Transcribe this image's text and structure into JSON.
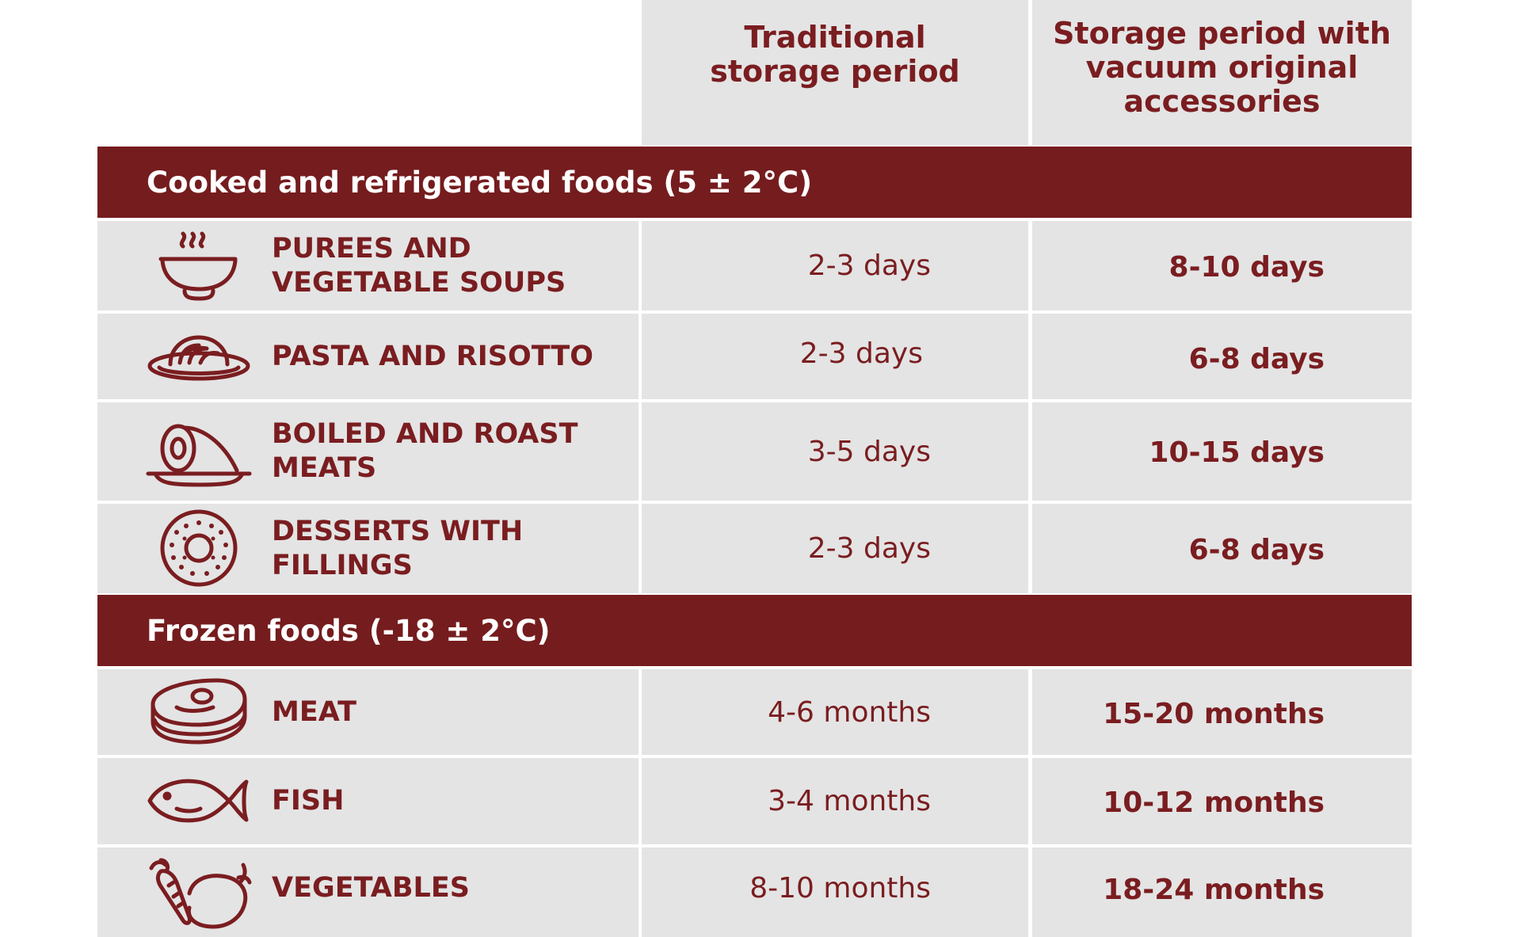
{
  "header": {
    "traditional": "Traditional\nstorage period",
    "vacuum": "Storage period with\nvacuum original\naccessories"
  },
  "sections": [
    {
      "title": "Cooked and refrigerated foods (5 ± 2°C)",
      "rows": [
        {
          "icon": "soup-bowl-icon",
          "name": "PUREES AND\nVEGETABLE SOUPS",
          "traditional": "2-3 days",
          "vacuum": "8-10 days"
        },
        {
          "icon": "pasta-plate-icon",
          "name": "PASTA AND RISOTTO",
          "traditional": "2-3 days",
          "vacuum": "6-8 days"
        },
        {
          "icon": "roast-meat-icon",
          "name": "BOILED AND ROAST\nMEATS",
          "traditional": "3-5 days",
          "vacuum": "10-15 days"
        },
        {
          "icon": "donut-icon",
          "name": "DESSERTS WITH\nFILLINGS",
          "traditional": "2-3 days",
          "vacuum": "6-8 days"
        }
      ]
    },
    {
      "title": "Frozen foods (-18 ± 2°C)",
      "rows": [
        {
          "icon": "steak-icon",
          "name": "MEAT",
          "traditional": "4-6 months",
          "vacuum": "15-20 months"
        },
        {
          "icon": "fish-icon",
          "name": "FISH",
          "traditional": "3-4 months",
          "vacuum": "10-12 months"
        },
        {
          "icon": "vegetables-icon",
          "name": "VEGETABLES",
          "traditional": "8-10 months",
          "vacuum": "18-24 months"
        }
      ]
    }
  ],
  "colors": {
    "accent": "#751c1e",
    "text": "#7a1d20",
    "cell": "#e4e4e4"
  }
}
